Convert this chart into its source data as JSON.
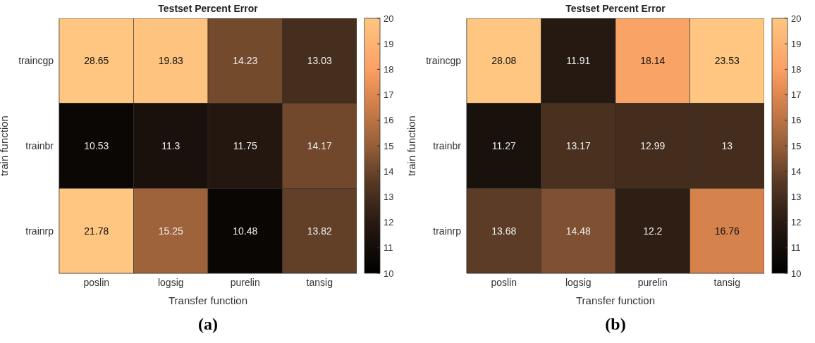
{
  "chart_data": [
    {
      "type": "heatmap",
      "title": "Testset Percent Error",
      "xlabel": "Transfer function",
      "ylabel": "train function",
      "categories": [
        "poslin",
        "logsig",
        "purelin",
        "tansig"
      ],
      "y_categories": [
        "traincgp",
        "trainbr",
        "trainrp"
      ],
      "cells": [
        [
          28.65,
          19.83,
          14.23,
          13.03
        ],
        [
          10.53,
          11.3,
          11.75,
          14.17
        ],
        [
          21.78,
          15.25,
          10.48,
          13.82
        ]
      ],
      "data_labels": true,
      "clim": [
        10,
        20
      ],
      "cticks": [
        10,
        11,
        12,
        13,
        14,
        15,
        16,
        17,
        18,
        19,
        20
      ],
      "annotations": [
        "(a)"
      ]
    },
    {
      "type": "heatmap",
      "title": "Testset Percent Error",
      "xlabel": "Transfer function",
      "ylabel": "train function",
      "categories": [
        "poslin",
        "logsig",
        "purelin",
        "tansig"
      ],
      "y_categories": [
        "traincgp",
        "trainbr",
        "trainrp"
      ],
      "cells": [
        [
          28.08,
          11.91,
          18.14,
          23.53
        ],
        [
          11.27,
          13.17,
          12.99,
          13
        ],
        [
          13.68,
          14.48,
          12.2,
          16.76
        ]
      ],
      "data_labels": true,
      "clim": [
        10,
        20
      ],
      "cticks": [
        10,
        11,
        12,
        13,
        14,
        15,
        16,
        17,
        18,
        19,
        20
      ],
      "annotations": [
        "(b)"
      ]
    }
  ]
}
